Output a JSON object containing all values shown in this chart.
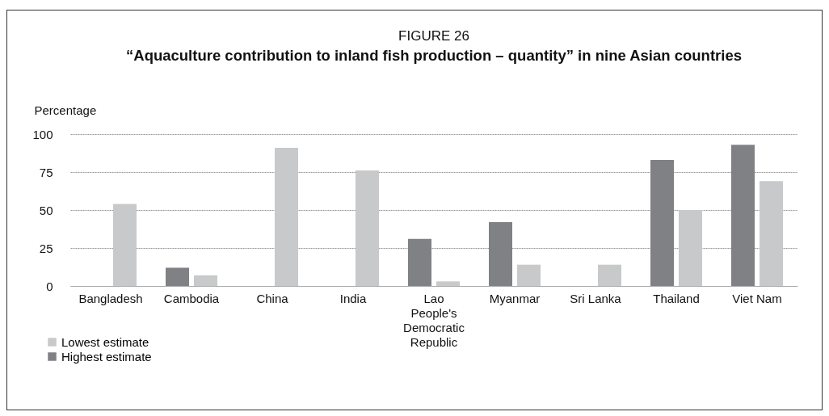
{
  "chart_data": {
    "type": "bar",
    "title": "FIGURE 26",
    "subtitle": "“Aquaculture contribution to inland fish production – quantity” in nine Asian countries",
    "ylabel": "Percentage",
    "categories": [
      "Bangladesh",
      "Cambodia",
      "China",
      "India",
      "Lao People's Democratic Republic",
      "Myanmar",
      "Sri Lanka",
      "Thailand",
      "Viet Nam"
    ],
    "series": [
      {
        "name": "Lowest estimate",
        "color": "#c8c9cb",
        "values": [
          54,
          7,
          91,
          76,
          3,
          14,
          14,
          50,
          69
        ]
      },
      {
        "name": "Highest estimate",
        "color": "#808184",
        "values": [
          null,
          12,
          null,
          null,
          31,
          42,
          null,
          83,
          93
        ]
      }
    ],
    "ylim": [
      0,
      100
    ],
    "yticks": [
      0,
      25,
      50,
      75,
      100
    ],
    "grid": "y",
    "legend": "bottom left"
  }
}
